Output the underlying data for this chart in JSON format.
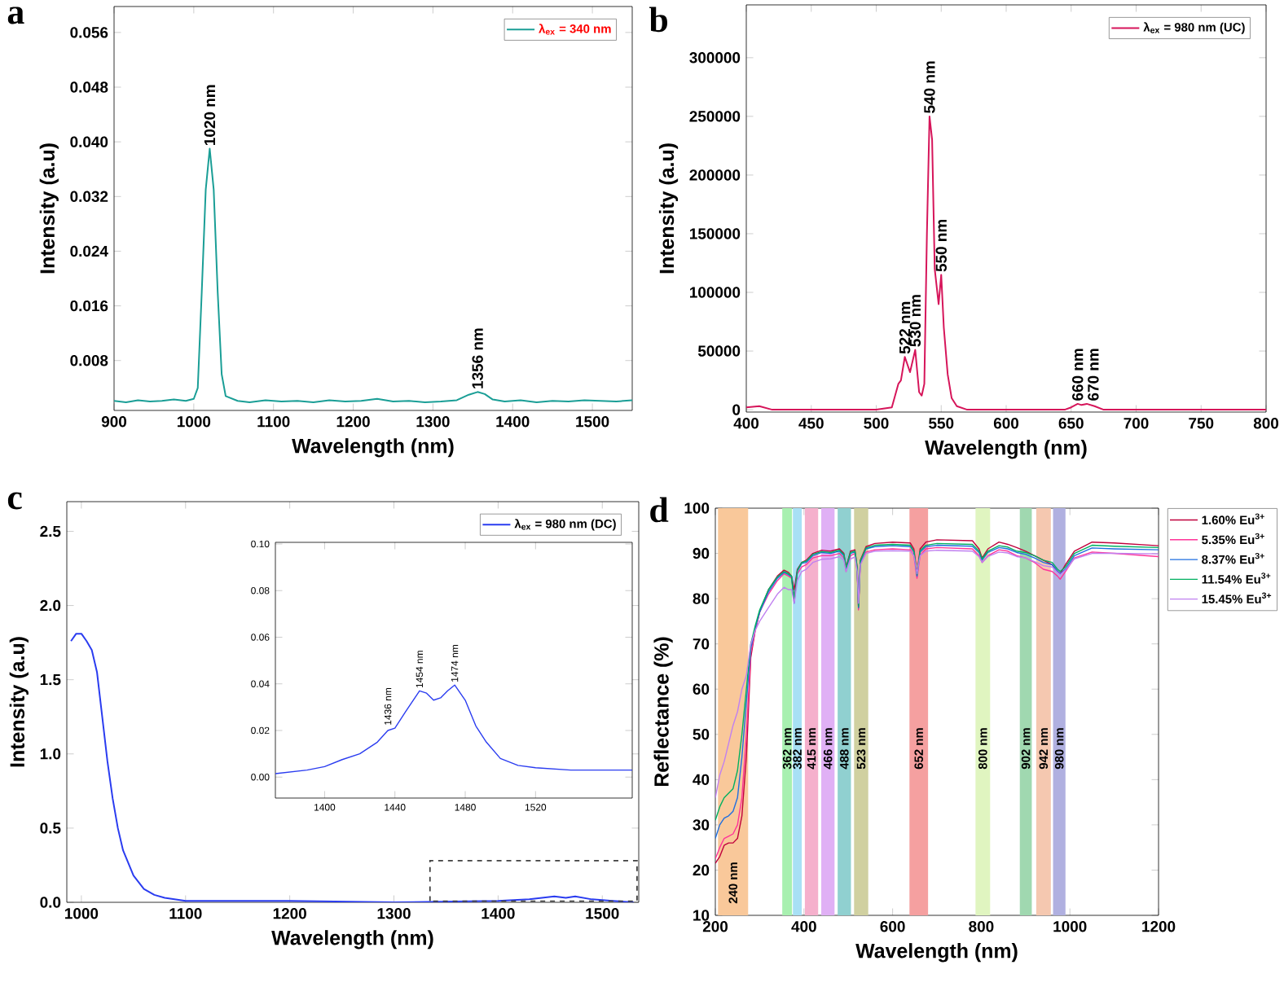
{
  "chart_data": [
    {
      "type": "line",
      "xlabel": "Wavelength (nm)",
      "ylabel": "Intensity (a.u)",
      "legend": "top right",
      "xlim": [
        900,
        1550
      ],
      "ylim": [
        0.0007,
        0.0598
      ],
      "xticks": [
        900,
        1000,
        1100,
        1200,
        1300,
        1400,
        1500
      ],
      "yticks": [
        0.008,
        0.016,
        0.024,
        0.032,
        {
          "value": 0.04,
          "label": "0.040"
        },
        0.048,
        0.056
      ],
      "x": [
        900,
        915,
        930,
        945,
        960,
        975,
        990,
        1000,
        1005,
        1010,
        1015,
        1020,
        1025,
        1030,
        1035,
        1040,
        1055,
        1070,
        1090,
        1110,
        1130,
        1150,
        1170,
        1190,
        1210,
        1230,
        1250,
        1270,
        1290,
        1310,
        1330,
        1345,
        1356,
        1365,
        1375,
        1390,
        1410,
        1430,
        1450,
        1470,
        1490,
        1510,
        1530,
        1550
      ],
      "series": [
        {
          "name": "λ$_{ex}$ = 340 nm",
          "color": "#1a9e96",
          "values": [
            0.0021,
            0.0019,
            0.0022,
            0.002,
            0.0021,
            0.0023,
            0.0021,
            0.0024,
            0.004,
            0.018,
            0.033,
            0.039,
            0.033,
            0.018,
            0.006,
            0.0028,
            0.0021,
            0.0019,
            0.0022,
            0.002,
            0.0021,
            0.0019,
            0.0022,
            0.002,
            0.0021,
            0.0024,
            0.002,
            0.0021,
            0.0019,
            0.002,
            0.0022,
            0.003,
            0.0034,
            0.0031,
            0.0023,
            0.002,
            0.0022,
            0.0019,
            0.0021,
            0.002,
            0.0022,
            0.0021,
            0.002,
            0.0022
          ]
        }
      ],
      "annotations": [
        "a",
        {
          "text": "1020 nm",
          "x": 1020,
          "y": 0.039
        },
        {
          "text": "1356 nm",
          "x": 1356,
          "y": 0.0034
        }
      ]
    },
    {
      "type": "line",
      "xlabel": "Wavelength (nm)",
      "ylabel": "Intensity (a.u)",
      "legend": "top right",
      "xlim": [
        400,
        800
      ],
      "ylim": [
        -2000,
        345000
      ],
      "xticks": [
        400,
        450,
        500,
        550,
        600,
        650,
        700,
        750,
        800
      ],
      "yticks": [
        0,
        50000,
        100000,
        150000,
        200000,
        250000,
        300000
      ],
      "x": [
        400,
        410,
        420,
        450,
        500,
        512,
        517,
        519,
        522,
        526,
        530,
        533,
        535,
        537,
        539,
        541,
        543,
        545,
        548,
        550,
        552,
        555,
        558,
        562,
        570,
        600,
        645,
        650,
        655,
        658,
        662,
        668,
        675,
        700,
        800
      ],
      "series": [
        {
          "name": "λ$_{ex}$ = 980 nm (UC)",
          "color": "#d6155a",
          "values": [
            2000,
            3000,
            0,
            0,
            0,
            2000,
            22000,
            25000,
            45000,
            32000,
            51000,
            15000,
            12000,
            22000,
            150000,
            250000,
            230000,
            120000,
            90000,
            115000,
            70000,
            30000,
            10000,
            3000,
            0,
            0,
            0,
            2000,
            5000,
            4000,
            5000,
            3000,
            0,
            0,
            0
          ]
        }
      ],
      "annotations": [
        "b",
        {
          "text": "522 nm",
          "x": 522,
          "y": 45000
        },
        {
          "text": "530 nm",
          "x": 530,
          "y": 51000
        },
        {
          "text": "540 nm",
          "x": 541,
          "y": 250000
        },
        {
          "text": "550 nm",
          "x": 550,
          "y": 115000
        },
        {
          "text": "660 nm",
          "x": 655,
          "y": 5000
        },
        {
          "text": "670 nm",
          "x": 667,
          "y": 5000
        }
      ]
    },
    {
      "type": "line",
      "xlabel": "Wavelength (nm)",
      "ylabel": "Intensity (a.u)",
      "legend": "top right",
      "xlim": [
        986,
        1535
      ],
      "ylim": [
        0,
        2.7
      ],
      "xticks": [
        1000,
        1100,
        1200,
        1300,
        1400,
        1500
      ],
      "yticks": [
        {
          "value": 0,
          "label": "0.0"
        },
        0.5,
        {
          "value": 1,
          "label": "1.0"
        },
        1.5,
        {
          "value": 2,
          "label": "2.0"
        },
        2.5
      ],
      "x": [
        990,
        995,
        1000,
        1005,
        1010,
        1015,
        1020,
        1025,
        1030,
        1035,
        1040,
        1050,
        1060,
        1070,
        1080,
        1100,
        1200,
        1300,
        1400,
        1430,
        1454,
        1465,
        1474,
        1490,
        1510,
        1530
      ],
      "series": [
        {
          "name": "λ$_{ex}$ = 980 nm (DC)",
          "color": "#2a3cf0",
          "values": [
            1.76,
            1.81,
            1.81,
            1.76,
            1.7,
            1.55,
            1.25,
            0.95,
            0.7,
            0.5,
            0.35,
            0.18,
            0.09,
            0.05,
            0.03,
            0.01,
            0.01,
            0,
            0.01,
            0.02,
            0.04,
            0.03,
            0.04,
            0.02,
            0.01,
            0
          ]
        }
      ],
      "annotations": [
        "c"
      ]
    },
    {
      "type": "line",
      "xlim": [
        1372,
        1575
      ],
      "ylim": [
        -0.009,
        0.1007
      ],
      "xticks": [
        1400,
        1440,
        1480,
        1520
      ],
      "yticks": [
        {
          "value": 0,
          "label": "0.00"
        },
        {
          "value": 0.02,
          "label": "0.02"
        },
        {
          "value": 0.04,
          "label": "0.04"
        },
        {
          "value": 0.06,
          "label": "0.06"
        },
        {
          "value": 0.08,
          "label": "0.08"
        },
        {
          "value": 0.1,
          "label": "0.10"
        }
      ],
      "x": [
        1372,
        1390,
        1400,
        1410,
        1420,
        1430,
        1436,
        1440,
        1446,
        1454,
        1458,
        1462,
        1466,
        1470,
        1474,
        1480,
        1486,
        1492,
        1500,
        1510,
        1520,
        1540,
        1560,
        1575
      ],
      "series": [
        {
          "color": "#2a3cf0",
          "values": [
            0.0015,
            0.003,
            0.0045,
            0.0075,
            0.01,
            0.015,
            0.02,
            0.021,
            0.028,
            0.037,
            0.036,
            0.033,
            0.034,
            0.037,
            0.0395,
            0.033,
            0.022,
            0.015,
            0.008,
            0.005,
            0.004,
            0.003,
            0.003,
            0.003
          ]
        }
      ],
      "annotations": [
        {
          "text": "1436 nm",
          "x": 1436,
          "y": 0.021
        },
        {
          "text": "1454 nm",
          "x": 1454,
          "y": 0.037
        },
        {
          "text": "1474 nm",
          "x": 1474,
          "y": 0.0395
        }
      ]
    },
    {
      "type": "line",
      "xlabel": "Wavelength (nm)",
      "ylabel": "Reflectance (%)",
      "legend": "right",
      "xlim": [
        200,
        1200
      ],
      "ylim": [
        10,
        100
      ],
      "xticks": [
        200,
        400,
        600,
        800,
        1000,
        1200
      ],
      "yticks": [
        10,
        20,
        30,
        40,
        50,
        60,
        70,
        80,
        90,
        100
      ],
      "x": [
        200,
        210,
        220,
        230,
        240,
        250,
        260,
        270,
        280,
        290,
        300,
        320,
        340,
        355,
        365,
        372,
        378,
        385,
        395,
        405,
        420,
        440,
        460,
        480,
        490,
        495,
        505,
        515,
        520,
        523,
        527,
        540,
        560,
        600,
        640,
        648,
        655,
        662,
        675,
        700,
        780,
        795,
        802,
        815,
        840,
        860,
        880,
        900,
        920,
        940,
        960,
        972,
        978,
        990,
        1010,
        1050,
        1100,
        1200
      ],
      "series": [
        {
          "name": "1.60% Eu$^{3+}$",
          "color": "#c0003c",
          "values": [
            21.5,
            23,
            25.5,
            26,
            26,
            27,
            32,
            45,
            67,
            73,
            77,
            82,
            85,
            86.3,
            85.8,
            85,
            82,
            86.5,
            88,
            88.5,
            90,
            90.7,
            90.5,
            91,
            90,
            87,
            90.5,
            90.8,
            87,
            78,
            88.5,
            91.5,
            92.2,
            92.5,
            92.3,
            91,
            85.5,
            91,
            92.5,
            93,
            92.8,
            91,
            89,
            91,
            92.5,
            92,
            91.3,
            90.5,
            89.5,
            88.5,
            87.5,
            86,
            85.5,
            87.5,
            90.5,
            92.5,
            92.3,
            91.7
          ]
        },
        {
          "name": "5.35% Eu$^{3+}$",
          "color": "#ff3399",
          "values": [
            22.5,
            25,
            27,
            27.5,
            28,
            30,
            36,
            50,
            68,
            73,
            77,
            81,
            84,
            85.5,
            85,
            84.5,
            80,
            85.5,
            87,
            87.5,
            89,
            89.5,
            89.5,
            90,
            89,
            86,
            89.5,
            90,
            86,
            77.5,
            87.5,
            90.3,
            90.8,
            91,
            90.8,
            89.5,
            84.5,
            89.5,
            91,
            91.3,
            91,
            89.5,
            88,
            89.5,
            90.8,
            90.5,
            89.5,
            89,
            88,
            86.5,
            86,
            85,
            84.3,
            86,
            89,
            90.3,
            90,
            89.3
          ]
        },
        {
          "name": "8.37% Eu$^{3+}$",
          "color": "#1f6fe0",
          "values": [
            27,
            30,
            31.5,
            32,
            33,
            36,
            45,
            57,
            69,
            73.5,
            77,
            81.5,
            84.5,
            85.8,
            85.3,
            84.8,
            79,
            86,
            87.8,
            88,
            89.5,
            90.2,
            90,
            90.5,
            89.5,
            86.5,
            90,
            90.3,
            86.5,
            78,
            88,
            91,
            91.5,
            91.7,
            91.5,
            90.3,
            85,
            90.3,
            91.5,
            91.8,
            91.6,
            90.2,
            88.5,
            90.2,
            91.3,
            91,
            90.2,
            89.8,
            89,
            88,
            87.5,
            86,
            85.5,
            86.5,
            89.5,
            91.2,
            91,
            90.8
          ]
        },
        {
          "name": "11.54% Eu$^{3+}$",
          "color": "#00b060",
          "values": [
            31,
            34,
            36,
            37,
            38,
            42,
            50,
            60,
            70,
            74,
            77.5,
            82,
            84.8,
            86,
            85.5,
            85,
            79.5,
            86.2,
            88,
            88.3,
            89.8,
            90.4,
            90.2,
            90.7,
            89.8,
            86.8,
            90.2,
            90.5,
            86.8,
            78.3,
            88.3,
            91.2,
            91.8,
            92,
            91.8,
            90.5,
            85.3,
            90.6,
            91.8,
            92.2,
            92,
            90.5,
            88.8,
            90.5,
            91.7,
            91.4,
            90.5,
            90.2,
            89.5,
            88.5,
            88,
            86.5,
            86,
            87,
            90,
            91.8,
            91.6,
            91.3
          ]
        },
        {
          "name": "15.45% Eu$^{3+}$",
          "color": "#c080f0",
          "values": [
            36,
            41,
            44,
            48,
            52,
            55,
            60,
            63,
            70,
            73,
            75,
            78,
            81,
            82.5,
            82,
            82,
            79,
            84,
            86,
            86.5,
            88,
            88.7,
            88.8,
            89.3,
            88.5,
            86,
            88.8,
            89.2,
            86,
            79,
            87.5,
            90,
            90.5,
            90.6,
            90.5,
            89.5,
            85.5,
            89.5,
            90.5,
            90.7,
            90.5,
            89.3,
            88,
            89.3,
            90.3,
            90.1,
            89.3,
            89,
            88.2,
            87.3,
            87,
            85.8,
            85.3,
            86.3,
            88.8,
            90,
            90,
            89.9
          ]
        }
      ],
      "bands": [
        {
          "axis": "x",
          "from": 206,
          "to": 274,
          "label": "240 nm",
          "color": "#f9c89a"
        },
        {
          "axis": "x",
          "from": 351,
          "to": 373,
          "label": "362 nm",
          "color": "#a8f0b0"
        },
        {
          "axis": "x",
          "from": 375,
          "to": 395,
          "label": "382 nm",
          "color": "#a8e0f5"
        },
        {
          "axis": "x",
          "from": 402,
          "to": 432,
          "label": "415 nm",
          "color": "#f5b0cc"
        },
        {
          "axis": "x",
          "from": 439,
          "to": 469,
          "label": "466 nm",
          "color": "#e0b0f5"
        },
        {
          "axis": "x",
          "from": 476,
          "to": 506,
          "label": "488 nm",
          "color": "#90d0d0"
        },
        {
          "axis": "x",
          "from": 513,
          "to": 545,
          "label": "523 nm",
          "color": "#d0d0a0"
        },
        {
          "axis": "x",
          "from": 638,
          "to": 680,
          "label": "652 nm",
          "color": "#f5a0a0"
        },
        {
          "axis": "x",
          "from": 787,
          "to": 820,
          "label": "800 nm",
          "color": "#e0f5c0"
        },
        {
          "axis": "x",
          "from": 887,
          "to": 914,
          "label": "902 nm",
          "color": "#a0d8b0"
        },
        {
          "axis": "x",
          "from": 924,
          "to": 957,
          "label": "942 nm",
          "color": "#f5c8b0"
        },
        {
          "axis": "x",
          "from": 962,
          "to": 990,
          "label": "980 nm",
          "color": "#b0b0e0"
        }
      ],
      "annotations": [
        "d"
      ]
    }
  ]
}
